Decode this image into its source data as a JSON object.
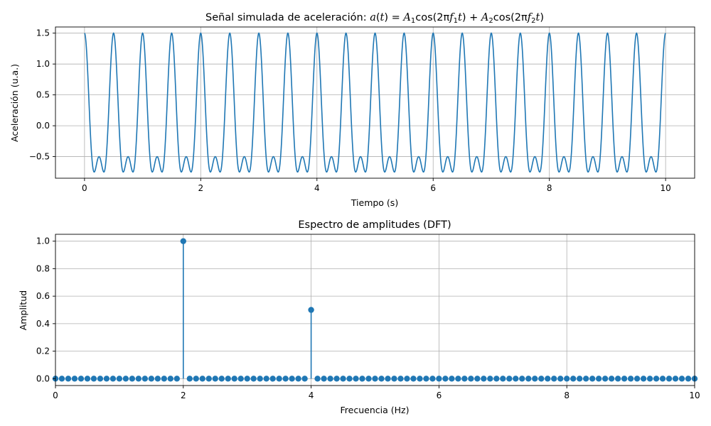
{
  "chart_data": [
    {
      "type": "line",
      "title": "Señal simulada de aceleración: a(t) = A₁cos(2πf₁t) + A₂cos(2πf₂t)",
      "xlabel": "Tiempo (s)",
      "ylabel": "Aceleración (u.a.)",
      "xlim": [
        -0.5,
        10.5
      ],
      "ylim": [
        -0.85,
        1.6
      ],
      "xticks": [
        "0",
        "2",
        "4",
        "6",
        "8",
        "10"
      ],
      "yticks": [
        "−0.5",
        "0.0",
        "0.5",
        "1.0",
        "1.5"
      ],
      "grid": true,
      "color": "#1f77b4",
      "series": [
        {
          "function": "A1*cos(2*pi*f1*t) + A2*cos(2*pi*f2*t)",
          "A1": 1.0,
          "f1": 2.0,
          "A2": 0.5,
          "f2": 4.0,
          "t_range": [
            0,
            10
          ]
        }
      ]
    },
    {
      "type": "stem",
      "title": "Espectro de amplitudes (DFT)",
      "xlabel": "Frecuencia (Hz)",
      "ylabel": "Amplitud",
      "xlim": [
        0,
        10
      ],
      "ylim": [
        -0.05,
        1.05
      ],
      "xticks": [
        "0",
        "2",
        "4",
        "6",
        "8",
        "10"
      ],
      "yticks": [
        "0.0",
        "0.2",
        "0.4",
        "0.6",
        "0.8",
        "1.0"
      ],
      "grid": true,
      "color": "#1f77b4",
      "frequency_step": 0.1,
      "frequency_range": [
        0,
        10
      ],
      "peaks": [
        {
          "x": 2.0,
          "y": 1.0
        },
        {
          "x": 4.0,
          "y": 0.5
        }
      ],
      "baseline_value": 0.0
    }
  ]
}
